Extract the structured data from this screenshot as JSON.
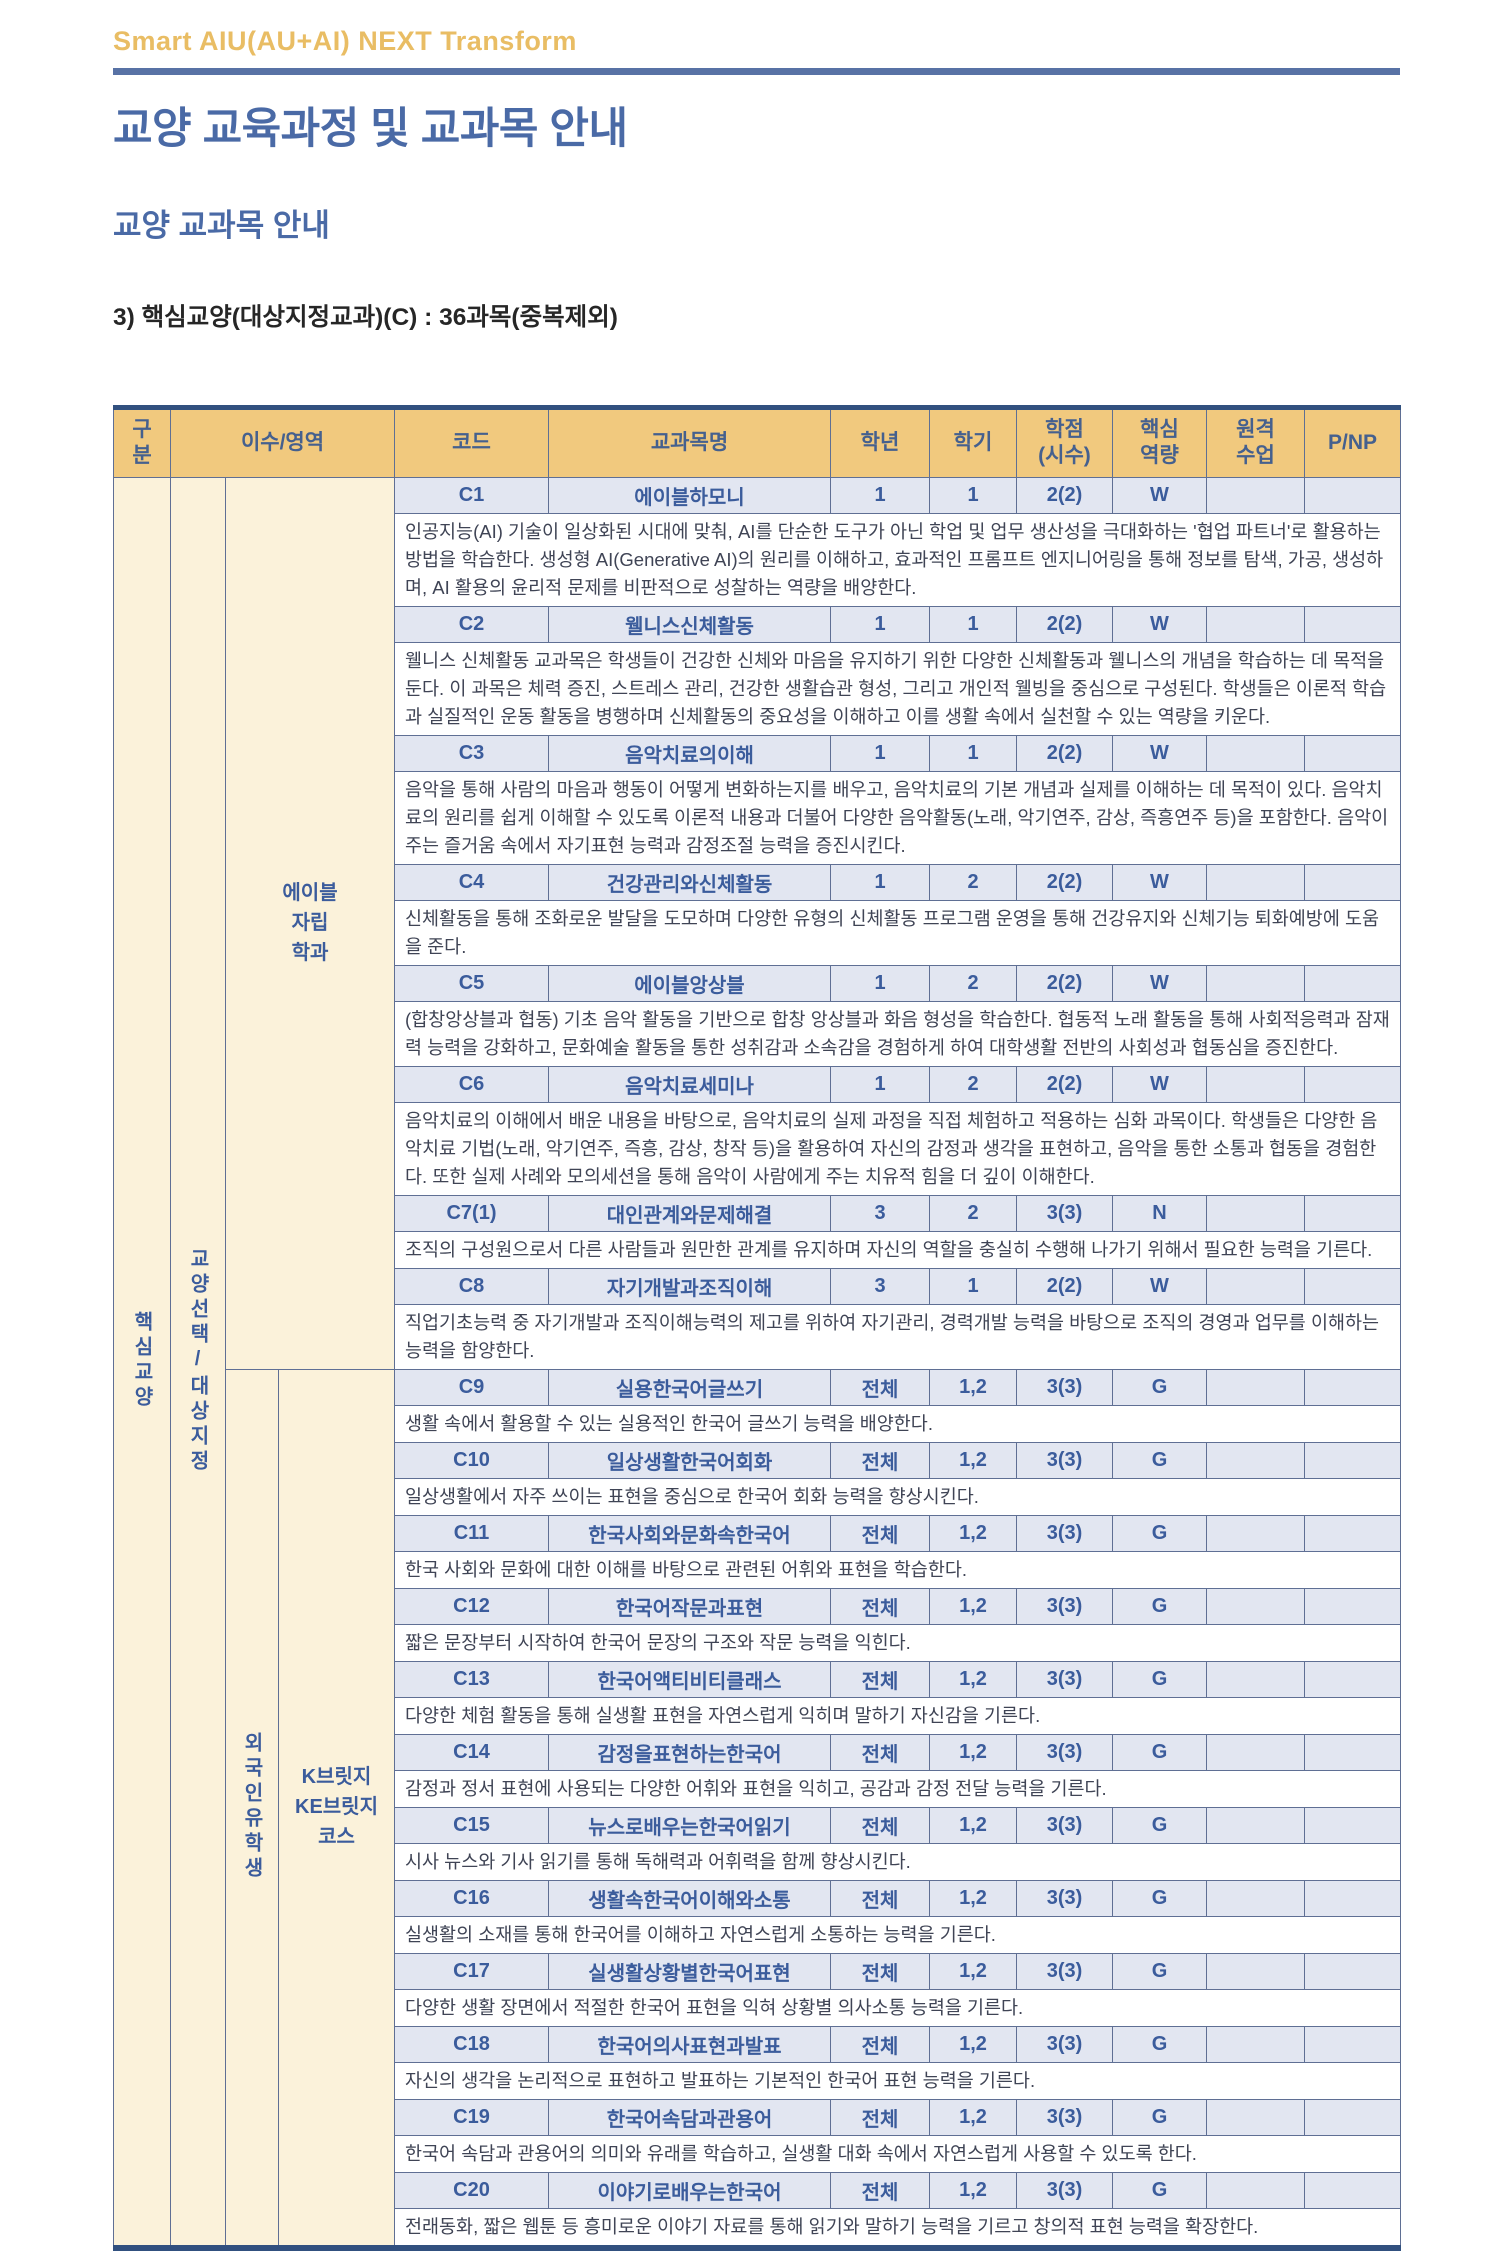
{
  "page": {
    "brand": "Smart AIU(AU+AI) NEXT Transform",
    "title": "교양 교육과정 및 교과목 안내",
    "section_heading": "교양 교과목 안내",
    "subsection_heading": "3) 핵심교양(대상지정교과)(C) : 36과목(중복제외)"
  },
  "colors": {
    "brand_gold": "#E9BD64",
    "title_blue": "#4A6AA6",
    "table_header_bg": "#F1C97E",
    "course_row_bg": "#E2E6F1",
    "side_column_bg": "#FBF2DA",
    "border": "#5F6F94",
    "thick_border": "#31507F",
    "course_text_blue": "#3B5C9C",
    "description_text": "#3F4455"
  },
  "table": {
    "headers": [
      "구\n분",
      "이수/영역",
      "코드",
      "교과목명",
      "학년",
      "학기",
      "학점\n(시수)",
      "핵심\n역량",
      "원격\n수업",
      "P/NP"
    ],
    "category_label": "핵심교양",
    "track_label": "교양선택/대상지정",
    "sections": [
      {
        "group_label": "에이블\n자립\n학과",
        "courses": [
          {
            "code": "C1",
            "name": "에이블하모니",
            "year": "1",
            "semester": "1",
            "credits": "2(2)",
            "competency": "W",
            "remote": "",
            "pnp": "",
            "description": "인공지능(AI) 기술이 일상화된 시대에 맞춰, AI를 단순한 도구가 아닌 학업 및 업무 생산성을 극대화하는 '협업 파트너'로 활용하는 방법을 학습한다. 생성형 AI(Generative AI)의 원리를 이해하고, 효과적인 프롬프트 엔지니어링을 통해 정보를 탐색, 가공, 생성하며, AI 활용의 윤리적 문제를 비판적으로 성찰하는 역량을 배양한다."
          },
          {
            "code": "C2",
            "name": "웰니스신체활동",
            "year": "1",
            "semester": "1",
            "credits": "2(2)",
            "competency": "W",
            "remote": "",
            "pnp": "",
            "description": "웰니스 신체활동 교과목은 학생들이 건강한 신체와 마음을 유지하기 위한 다양한 신체활동과 웰니스의 개념을 학습하는 데 목적을 둔다. 이 과목은 체력 증진, 스트레스 관리, 건강한 생활습관 형성, 그리고 개인적 웰빙을 중심으로 구성된다. 학생들은 이론적 학습과 실질적인 운동 활동을 병행하며 신체활동의 중요성을 이해하고 이를 생활 속에서 실천할 수 있는 역량을 키운다."
          },
          {
            "code": "C3",
            "name": "음악치료의이해",
            "year": "1",
            "semester": "1",
            "credits": "2(2)",
            "competency": "W",
            "remote": "",
            "pnp": "",
            "description": "음악을 통해 사람의 마음과 행동이 어떻게 변화하는지를 배우고, 음악치료의 기본 개념과 실제를 이해하는 데 목적이 있다. 음악치료의 원리를 쉽게 이해할 수 있도록 이론적 내용과 더불어 다양한 음악활동(노래, 악기연주, 감상, 즉흥연주 등)을 포함한다. 음악이 주는 즐거움 속에서 자기표현 능력과 감정조절 능력을 증진시킨다."
          },
          {
            "code": "C4",
            "name": "건강관리와신체활동",
            "year": "1",
            "semester": "2",
            "credits": "2(2)",
            "competency": "W",
            "remote": "",
            "pnp": "",
            "description": "신체활동을 통해 조화로운 발달을 도모하며 다양한 유형의 신체활동 프로그램 운영을 통해 건강유지와 신체기능 퇴화예방에 도움을 준다."
          },
          {
            "code": "C5",
            "name": "에이블앙상블",
            "year": "1",
            "semester": "2",
            "credits": "2(2)",
            "competency": "W",
            "remote": "",
            "pnp": "",
            "description": "(합창앙상블과 협동) 기초 음악 활동을 기반으로 합창 앙상블과 화음 형성을 학습한다. 협동적 노래 활동을 통해 사회적응력과 잠재력 능력을 강화하고, 문화예술 활동을 통한 성취감과 소속감을 경험하게 하여 대학생활 전반의 사회성과 협동심을 증진한다."
          },
          {
            "code": "C6",
            "name": "음악치료세미나",
            "year": "1",
            "semester": "2",
            "credits": "2(2)",
            "competency": "W",
            "remote": "",
            "pnp": "",
            "description": "음악치료의 이해에서 배운 내용을 바탕으로, 음악치료의 실제 과정을 직접 체험하고 적용하는 심화 과목이다. 학생들은 다양한 음악치료 기법(노래, 악기연주, 즉흥, 감상, 창작 등)을 활용하여 자신의 감정과 생각을 표현하고, 음악을 통한 소통과 협동을 경험한다. 또한 실제 사례와 모의세션을 통해 음악이 사람에게 주는 치유적 힘을 더 깊이 이해한다."
          },
          {
            "code": "C7(1)",
            "name": "대인관계와문제해결",
            "year": "3",
            "semester": "2",
            "credits": "3(3)",
            "competency": "N",
            "remote": "",
            "pnp": "",
            "description": "조직의 구성원으로서 다른 사람들과 원만한 관계를 유지하며 자신의 역할을 충실히 수행해 나가기 위해서 필요한 능력을 기른다."
          },
          {
            "code": "C8",
            "name": "자기개발과조직이해",
            "year": "3",
            "semester": "1",
            "credits": "2(2)",
            "competency": "W",
            "remote": "",
            "pnp": "",
            "description": "직업기초능력 중 자기개발과 조직이해능력의 제고를 위하여 자기관리, 경력개발 능력을 바탕으로 조직의 경영과 업무를 이해하는 능력을 함양한다."
          }
        ]
      },
      {
        "student_label": "외국인유학생",
        "group_label": "K브릿지\nKE브릿지\n코스",
        "courses": [
          {
            "code": "C9",
            "name": "실용한국어글쓰기",
            "year": "전체",
            "semester": "1,2",
            "credits": "3(3)",
            "competency": "G",
            "remote": "",
            "pnp": "",
            "description": "생활 속에서 활용할 수 있는 실용적인 한국어 글쓰기 능력을 배양한다."
          },
          {
            "code": "C10",
            "name": "일상생활한국어회화",
            "year": "전체",
            "semester": "1,2",
            "credits": "3(3)",
            "competency": "G",
            "remote": "",
            "pnp": "",
            "description": "일상생활에서 자주 쓰이는 표현을 중심으로 한국어 회화 능력을 향상시킨다."
          },
          {
            "code": "C11",
            "name": "한국사회와문화속한국어",
            "year": "전체",
            "semester": "1,2",
            "credits": "3(3)",
            "competency": "G",
            "remote": "",
            "pnp": "",
            "description": "한국 사회와 문화에 대한 이해를 바탕으로 관련된 어휘와 표현을 학습한다."
          },
          {
            "code": "C12",
            "name": "한국어작문과표현",
            "year": "전체",
            "semester": "1,2",
            "credits": "3(3)",
            "competency": "G",
            "remote": "",
            "pnp": "",
            "description": "짧은 문장부터 시작하여 한국어 문장의 구조와 작문 능력을 익힌다."
          },
          {
            "code": "C13",
            "name": "한국어액티비티클래스",
            "year": "전체",
            "semester": "1,2",
            "credits": "3(3)",
            "competency": "G",
            "remote": "",
            "pnp": "",
            "description": "다양한 체험 활동을 통해 실생활 표현을 자연스럽게 익히며 말하기 자신감을 기른다."
          },
          {
            "code": "C14",
            "name": "감정을표현하는한국어",
            "year": "전체",
            "semester": "1,2",
            "credits": "3(3)",
            "competency": "G",
            "remote": "",
            "pnp": "",
            "description": "감정과 정서 표현에 사용되는 다양한 어휘와 표현을 익히고, 공감과 감정 전달 능력을 기른다."
          },
          {
            "code": "C15",
            "name": "뉴스로배우는한국어읽기",
            "year": "전체",
            "semester": "1,2",
            "credits": "3(3)",
            "competency": "G",
            "remote": "",
            "pnp": "",
            "description": "시사 뉴스와 기사 읽기를 통해 독해력과 어휘력을 함께 향상시킨다."
          },
          {
            "code": "C16",
            "name": "생활속한국어이해와소통",
            "year": "전체",
            "semester": "1,2",
            "credits": "3(3)",
            "competency": "G",
            "remote": "",
            "pnp": "",
            "description": "실생활의 소재를 통해 한국어를 이해하고 자연스럽게 소통하는 능력을 기른다."
          },
          {
            "code": "C17",
            "name": "실생활상황별한국어표현",
            "year": "전체",
            "semester": "1,2",
            "credits": "3(3)",
            "competency": "G",
            "remote": "",
            "pnp": "",
            "description": "다양한 생활 장면에서 적절한 한국어 표현을 익혀 상황별 의사소통 능력을 기른다."
          },
          {
            "code": "C18",
            "name": "한국어의사표현과발표",
            "year": "전체",
            "semester": "1,2",
            "credits": "3(3)",
            "competency": "G",
            "remote": "",
            "pnp": "",
            "description": "자신의 생각을 논리적으로 표현하고 발표하는 기본적인 한국어 표현 능력을 기른다."
          },
          {
            "code": "C19",
            "name": "한국어속담과관용어",
            "year": "전체",
            "semester": "1,2",
            "credits": "3(3)",
            "competency": "G",
            "remote": "",
            "pnp": "",
            "description": "한국어 속담과 관용어의 의미와 유래를 학습하고, 실생활 대화 속에서 자연스럽게 사용할 수 있도록 한다."
          },
          {
            "code": "C20",
            "name": "이야기로배우는한국어",
            "year": "전체",
            "semester": "1,2",
            "credits": "3(3)",
            "competency": "G",
            "remote": "",
            "pnp": "",
            "description": "전래동화, 짧은 웹툰 등 흥미로운 이야기 자료를 통해 읽기와 말하기 능력을 기르고 창의적 표현 능력을 확장한다."
          }
        ]
      }
    ]
  }
}
